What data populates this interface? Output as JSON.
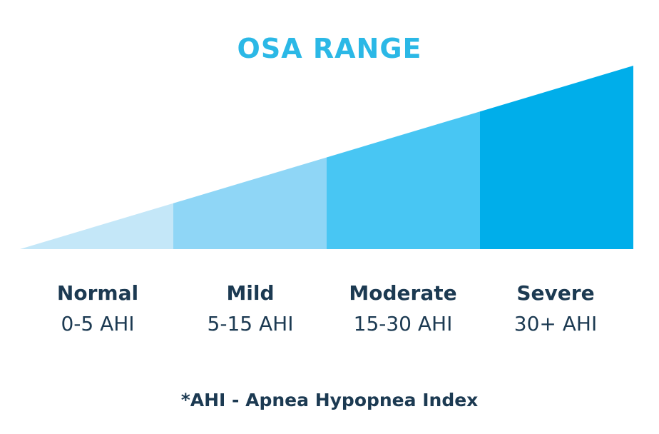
{
  "title": "OSA RANGE",
  "categories": [
    {
      "name": "Normal",
      "range": "0-5 AHI",
      "color": "#c4e7f8"
    },
    {
      "name": "Mild",
      "range": "5-15 AHI",
      "color": "#8fd6f6"
    },
    {
      "name": "Moderate",
      "range": "15-30 AHI",
      "color": "#48c6f3"
    },
    {
      "name": "Severe",
      "range": "30+ AHI",
      "color": "#00aeea"
    }
  ],
  "footnote": "*AHI - Apnea Hypopnea Index"
}
